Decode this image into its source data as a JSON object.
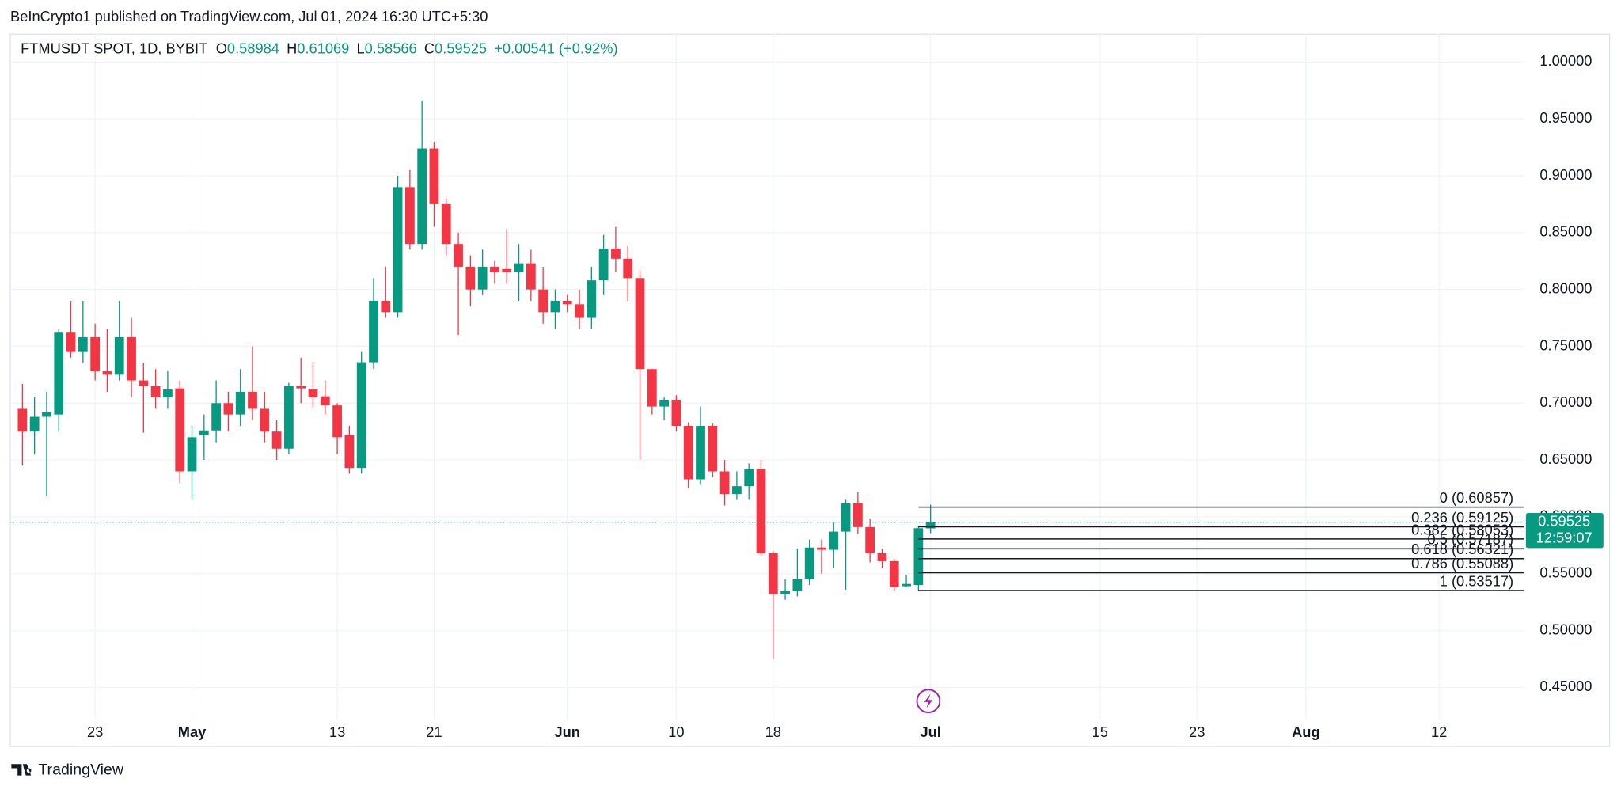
{
  "header": "BeInCrypto1 published on TradingView.com, Jul 01, 2024 16:30 UTC+5:30",
  "footer": "TradingView",
  "chart_data": {
    "type": "candlestick",
    "symbol": "FTMUSDT SPOT, 1D, BYBIT",
    "ohlc": [
      {
        "key": "O",
        "value": 0.58984
      },
      {
        "key": "H",
        "value": 0.61069
      },
      {
        "key": "L",
        "value": 0.58566
      },
      {
        "key": "C",
        "value": 0.59525
      }
    ],
    "change": "+0.00541 (+0.92%)",
    "up_color": "#089981",
    "down_color": "#f23645",
    "x": [
      "2024-04-17",
      "2024-04-18",
      "2024-04-19",
      "2024-04-20",
      "2024-04-21",
      "2024-04-22",
      "2024-04-23",
      "2024-04-24",
      "2024-04-25",
      "2024-04-26",
      "2024-04-27",
      "2024-04-28",
      "2024-04-29",
      "2024-04-30",
      "2024-05-01",
      "2024-05-02",
      "2024-05-03",
      "2024-05-04",
      "2024-05-05",
      "2024-05-06",
      "2024-05-07",
      "2024-05-08",
      "2024-05-09",
      "2024-05-10",
      "2024-05-11",
      "2024-05-12",
      "2024-05-13",
      "2024-05-14",
      "2024-05-15",
      "2024-05-16",
      "2024-05-17",
      "2024-05-18",
      "2024-05-19",
      "2024-05-20",
      "2024-05-21",
      "2024-05-22",
      "2024-05-23",
      "2024-05-24",
      "2024-05-25",
      "2024-05-26",
      "2024-05-27",
      "2024-05-28",
      "2024-05-29",
      "2024-05-30",
      "2024-05-31",
      "2024-06-01",
      "2024-06-02",
      "2024-06-03",
      "2024-06-04",
      "2024-06-05",
      "2024-06-06",
      "2024-06-07",
      "2024-06-08",
      "2024-06-09",
      "2024-06-10",
      "2024-06-11",
      "2024-06-12",
      "2024-06-13",
      "2024-06-14",
      "2024-06-15",
      "2024-06-16",
      "2024-06-17",
      "2024-06-18",
      "2024-06-19",
      "2024-06-20",
      "2024-06-21",
      "2024-06-22",
      "2024-06-23",
      "2024-06-24",
      "2024-06-25",
      "2024-06-26",
      "2024-06-27",
      "2024-06-28",
      "2024-06-29",
      "2024-06-30",
      "2024-07-01"
    ],
    "open": [
      0.695,
      0.675,
      0.688,
      0.69,
      0.762,
      0.745,
      0.758,
      0.728,
      0.725,
      0.758,
      0.72,
      0.715,
      0.705,
      0.713,
      0.64,
      0.672,
      0.676,
      0.7,
      0.69,
      0.71,
      0.695,
      0.675,
      0.66,
      0.715,
      0.712,
      0.706,
      0.698,
      0.672,
      0.643,
      0.736,
      0.79,
      0.78,
      0.89,
      0.84,
      0.924,
      0.875,
      0.84,
      0.82,
      0.8,
      0.82,
      0.818,
      0.815,
      0.823,
      0.8,
      0.78,
      0.79,
      0.787,
      0.775,
      0.808,
      0.836,
      0.827,
      0.81,
      0.73,
      0.697,
      0.703,
      0.68,
      0.633,
      0.68,
      0.64,
      0.62,
      0.627,
      0.642,
      0.568,
      0.532,
      0.535,
      0.545,
      0.573,
      0.571,
      0.587,
      0.612,
      0.591,
      0.568,
      0.561,
      0.539,
      0.54,
      0.58984
    ],
    "high": [
      0.717,
      0.705,
      0.71,
      0.765,
      0.79,
      0.79,
      0.77,
      0.765,
      0.79,
      0.775,
      0.735,
      0.73,
      0.728,
      0.72,
      0.68,
      0.69,
      0.72,
      0.71,
      0.73,
      0.75,
      0.71,
      0.685,
      0.718,
      0.74,
      0.735,
      0.72,
      0.7,
      0.68,
      0.745,
      0.81,
      0.82,
      0.9,
      0.905,
      0.966,
      0.93,
      0.88,
      0.85,
      0.83,
      0.835,
      0.825,
      0.853,
      0.84,
      0.835,
      0.82,
      0.8,
      0.795,
      0.8,
      0.82,
      0.848,
      0.855,
      0.838,
      0.817,
      0.73,
      0.705,
      0.707,
      0.683,
      0.697,
      0.682,
      0.65,
      0.64,
      0.647,
      0.65,
      0.57,
      0.545,
      0.572,
      0.58,
      0.58,
      0.595,
      0.615,
      0.622,
      0.598,
      0.572,
      0.563,
      0.549,
      0.592,
      0.61069
    ],
    "low": [
      0.645,
      0.655,
      0.618,
      0.675,
      0.74,
      0.735,
      0.72,
      0.71,
      0.72,
      0.705,
      0.674,
      0.695,
      0.695,
      0.63,
      0.615,
      0.65,
      0.665,
      0.675,
      0.68,
      0.685,
      0.665,
      0.65,
      0.655,
      0.7,
      0.695,
      0.69,
      0.655,
      0.638,
      0.638,
      0.73,
      0.775,
      0.775,
      0.835,
      0.835,
      0.855,
      0.83,
      0.76,
      0.785,
      0.795,
      0.805,
      0.805,
      0.79,
      0.79,
      0.77,
      0.765,
      0.78,
      0.765,
      0.765,
      0.795,
      0.815,
      0.79,
      0.65,
      0.69,
      0.685,
      0.675,
      0.625,
      0.628,
      0.635,
      0.61,
      0.615,
      0.615,
      0.565,
      0.475,
      0.527,
      0.53,
      0.54,
      0.55,
      0.555,
      0.536,
      0.585,
      0.56,
      0.555,
      0.535,
      0.538,
      0.535,
      0.58566
    ],
    "close": [
      0.675,
      0.688,
      0.692,
      0.762,
      0.745,
      0.758,
      0.728,
      0.725,
      0.758,
      0.72,
      0.715,
      0.705,
      0.712,
      0.64,
      0.67,
      0.676,
      0.7,
      0.69,
      0.71,
      0.695,
      0.675,
      0.66,
      0.715,
      0.713,
      0.705,
      0.698,
      0.67,
      0.643,
      0.736,
      0.79,
      0.78,
      0.89,
      0.84,
      0.924,
      0.875,
      0.84,
      0.82,
      0.8,
      0.82,
      0.815,
      0.815,
      0.823,
      0.8,
      0.78,
      0.79,
      0.787,
      0.775,
      0.808,
      0.836,
      0.827,
      0.81,
      0.73,
      0.697,
      0.703,
      0.68,
      0.633,
      0.68,
      0.64,
      0.62,
      0.627,
      0.642,
      0.568,
      0.532,
      0.535,
      0.545,
      0.573,
      0.571,
      0.587,
      0.612,
      0.591,
      0.568,
      0.561,
      0.538,
      0.541,
      0.59,
      0.59525
    ],
    "xlim": [
      "2024-04-16",
      "2024-08-19"
    ],
    "xticks": [
      {
        "value": "2024-04-23",
        "label": "23"
      },
      {
        "value": "2024-05-01",
        "label": "May"
      },
      {
        "value": "2024-05-13",
        "label": "13"
      },
      {
        "value": "2024-05-21",
        "label": "21"
      },
      {
        "value": "2024-06-01",
        "label": "Jun"
      },
      {
        "value": "2024-06-10",
        "label": "10"
      },
      {
        "value": "2024-06-18",
        "label": "18"
      },
      {
        "value": "2024-07-01",
        "label": "Jul"
      },
      {
        "value": "2024-07-15",
        "label": "15"
      },
      {
        "value": "2024-07-23",
        "label": "23"
      },
      {
        "value": "2024-08-01",
        "label": "Aug"
      },
      {
        "value": "2024-08-12",
        "label": "12"
      }
    ],
    "ylim": [
      0.398,
      1.0245
    ],
    "yticks": [
      {
        "value": 0.45,
        "label": "0.45000"
      },
      {
        "value": 0.5,
        "label": "0.50000"
      },
      {
        "value": 0.55,
        "label": "0.55000"
      },
      {
        "value": 0.6,
        "label": "0.60000"
      },
      {
        "value": 0.65,
        "label": "0.65000"
      },
      {
        "value": 0.7,
        "label": "0.70000"
      },
      {
        "value": 0.75,
        "label": "0.75000"
      },
      {
        "value": 0.8,
        "label": "0.80000"
      },
      {
        "value": 0.85,
        "label": "0.85000"
      },
      {
        "value": 0.9,
        "label": "0.90000"
      },
      {
        "value": 0.95,
        "label": "0.95000"
      },
      {
        "value": 1.0,
        "label": "1.00000"
      }
    ],
    "grid": true,
    "fib_levels": [
      {
        "value": 0.60857,
        "label": "0 (0.60857)"
      },
      {
        "value": 0.59125,
        "label": "0.236 (0.59125)"
      },
      {
        "value": 0.58053,
        "label": "0.382 (0.58053)"
      },
      {
        "value": 0.57187,
        "label": "0.5 (0.57187)"
      },
      {
        "value": 0.56321,
        "label": "0.618 (0.56321)"
      },
      {
        "value": 0.55088,
        "label": "0.786 (0.55088)"
      },
      {
        "value": 0.53517,
        "label": "1 (0.53517)"
      }
    ],
    "fib_start": "2024-06-30",
    "last_price": 0.59525,
    "countdown": "12:59:07"
  }
}
